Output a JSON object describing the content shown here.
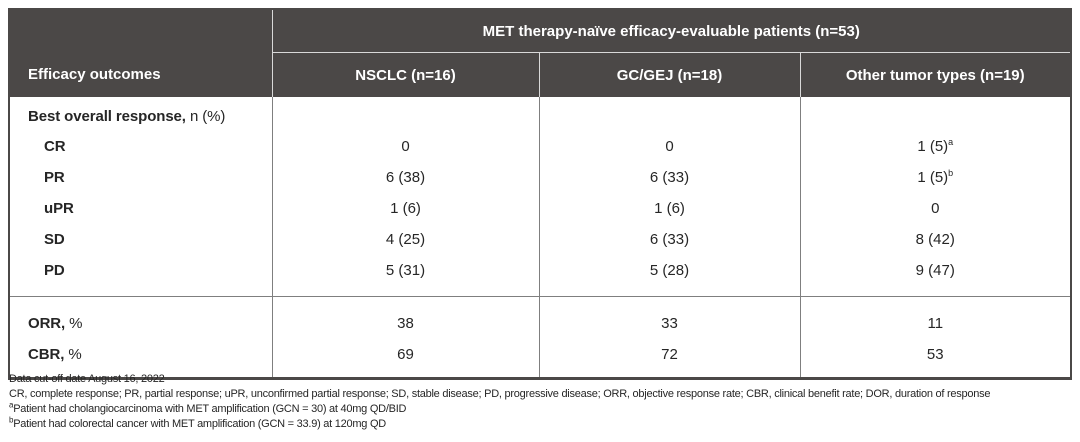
{
  "colors": {
    "header_bg": "#4b4847",
    "header_text": "#ffffff",
    "header_grid": "#d9d9d9",
    "body_grid": "#7f7f7f",
    "body_text": "#262626",
    "outer_border": "#4b4847"
  },
  "table": {
    "header": {
      "corner_label": "Efficacy outcomes",
      "title": "MET therapy-naïve efficacy-evaluable patients (n=53)",
      "columns": [
        "NSCLC (n=16)",
        "GC/GEJ (n=18)",
        "Other tumor types (n=19)"
      ]
    },
    "sections": [
      {
        "rows": [
          {
            "label": "Best overall response,",
            "label_suffix": " n (%)",
            "indent": false,
            "values": [
              "",
              "",
              ""
            ]
          },
          {
            "label": "CR",
            "label_suffix": "",
            "indent": true,
            "values": [
              "0",
              "0",
              {
                "text": "1 (5)",
                "sup": "a"
              }
            ]
          },
          {
            "label": "PR",
            "label_suffix": "",
            "indent": true,
            "values": [
              "6 (38)",
              "6 (33)",
              {
                "text": "1 (5)",
                "sup": "b"
              }
            ]
          },
          {
            "label": "uPR",
            "label_suffix": "",
            "indent": true,
            "values": [
              "1 (6)",
              "1 (6)",
              "0"
            ]
          },
          {
            "label": "SD",
            "label_suffix": "",
            "indent": true,
            "values": [
              "4 (25)",
              "6 (33)",
              "8 (42)"
            ]
          },
          {
            "label": "PD",
            "label_suffix": "",
            "indent": true,
            "values": [
              "5 (31)",
              "5 (28)",
              "9 (47)"
            ]
          }
        ]
      },
      {
        "rows": [
          {
            "label": "ORR,",
            "label_suffix": " %",
            "indent": false,
            "values": [
              "38",
              "33",
              "11"
            ]
          },
          {
            "label": "CBR,",
            "label_suffix": " %",
            "indent": false,
            "values": [
              "69",
              "72",
              "53"
            ]
          }
        ]
      }
    ]
  },
  "footnotes": [
    {
      "sup": "",
      "text": "Data cut-off date August 16, 2022"
    },
    {
      "sup": "",
      "text": "CR, complete response; PR, partial response; uPR, unconfirmed partial response; SD, stable disease; PD, progressive disease; ORR, objective response rate; CBR, clinical benefit rate; DOR, duration of response"
    },
    {
      "sup": "a",
      "text": "Patient had cholangiocarcinoma with MET amplification (GCN = 30) at 40mg QD/BID"
    },
    {
      "sup": "b",
      "text": "Patient had colorectal cancer with MET amplification (GCN = 33.9) at 120mg QD"
    }
  ]
}
